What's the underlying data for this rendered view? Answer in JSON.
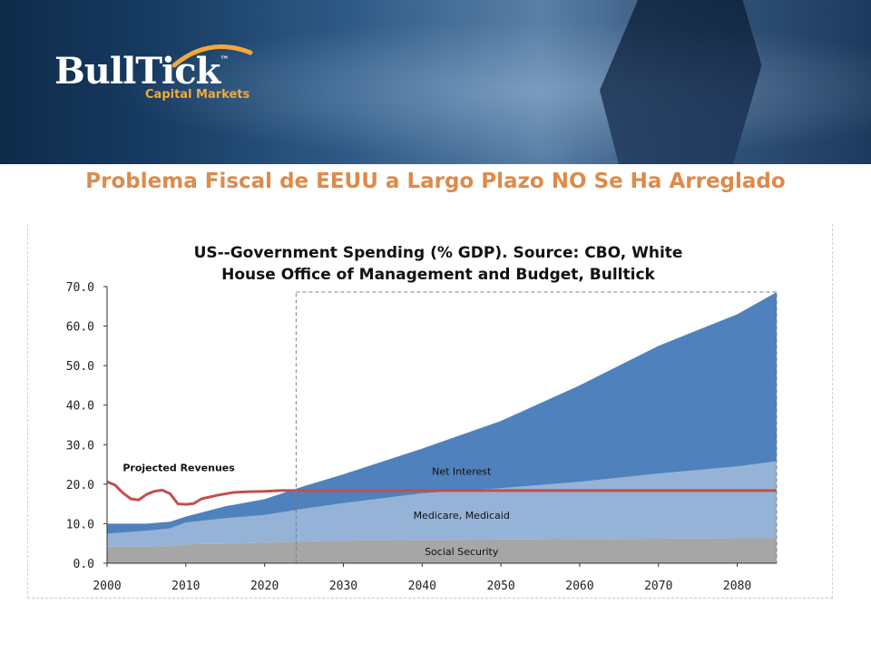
{
  "header": {
    "logo_text": "BullTick",
    "logo_trademark": "™",
    "logo_subtitle": "Capital Markets"
  },
  "page_title": "Problema Fiscal de EEUU a Largo Plazo NO Se Ha Arreglado",
  "colors": {
    "title": "#de8a4a",
    "social_security": "#a6a6a6",
    "medicare_medicaid": "#95b3d7",
    "net_interest": "#4f81bd",
    "projected_revenues": "#c0504d"
  },
  "chart_data": {
    "type": "area",
    "title_line1": "US--Government Spending (% GDP). Source: CBO, White",
    "title_line2": "House Office of Management and Budget, Bulltick",
    "xlabel": "",
    "ylabel": "",
    "xlim": [
      2000,
      2085
    ],
    "ylim": [
      0,
      70
    ],
    "x_ticks": [
      "2000",
      "2010",
      "2020",
      "2030",
      "2040",
      "2050",
      "2060",
      "2070",
      "2080"
    ],
    "y_ticks": [
      "0.0",
      "10.0",
      "20.0",
      "30.0",
      "40.0",
      "50.0",
      "60.0",
      "70.0"
    ],
    "projection_start": 2024,
    "grid": false,
    "series": [
      {
        "name": "Social Security",
        "kind": "stacked-area",
        "x": [
          2000,
          2005,
          2008,
          2010,
          2015,
          2020,
          2025,
          2030,
          2040,
          2050,
          2060,
          2070,
          2080,
          2085
        ],
        "values": [
          4.2,
          4.2,
          4.3,
          4.8,
          4.9,
          5.2,
          5.5,
          5.7,
          5.9,
          6.0,
          6.1,
          6.2,
          6.3,
          6.3
        ]
      },
      {
        "name": "Medicare, Medicaid",
        "kind": "stacked-area",
        "x": [
          2000,
          2005,
          2008,
          2010,
          2015,
          2020,
          2025,
          2030,
          2040,
          2050,
          2060,
          2070,
          2080,
          2085
        ],
        "values": [
          3.3,
          4.0,
          4.5,
          5.5,
          6.5,
          7.0,
          8.3,
          9.5,
          11.8,
          13.0,
          14.5,
          16.5,
          18.2,
          19.5
        ]
      },
      {
        "name": "Net Interest",
        "kind": "stacked-area",
        "x": [
          2000,
          2005,
          2008,
          2010,
          2015,
          2020,
          2025,
          2030,
          2040,
          2050,
          2060,
          2070,
          2080,
          2085
        ],
        "values": [
          2.5,
          1.8,
          1.7,
          1.5,
          3.0,
          4.0,
          5.7,
          7.3,
          11.3,
          17.0,
          24.4,
          32.3,
          38.5,
          42.8
        ]
      },
      {
        "name": "Projected Revenues",
        "kind": "line",
        "x": [
          2000,
          2001,
          2002,
          2003,
          2004,
          2005,
          2006,
          2007,
          2008,
          2009,
          2010,
          2011,
          2012,
          2014,
          2016,
          2018,
          2020,
          2022,
          2085
        ],
        "values": [
          20.6,
          19.8,
          17.8,
          16.3,
          16.0,
          17.4,
          18.2,
          18.5,
          17.6,
          15.0,
          14.9,
          15.1,
          16.3,
          17.2,
          17.9,
          18.1,
          18.2,
          18.4,
          18.4
        ]
      }
    ]
  }
}
